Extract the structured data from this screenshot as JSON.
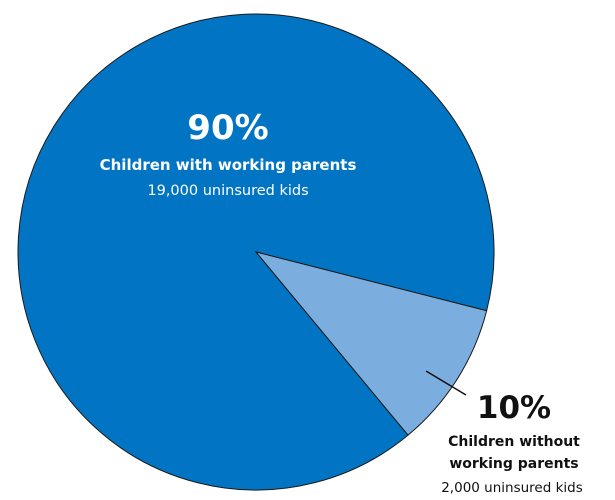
{
  "chart_data": {
    "type": "pie",
    "title": "",
    "slices": [
      {
        "label": "Children with working parents",
        "percent_label": "90%",
        "detail": "19,000 uninsured kids",
        "value": 90,
        "color": "#0175C4"
      },
      {
        "label": "Children without working parents",
        "label_lines": [
          "Children without",
          "working parents"
        ],
        "percent_label": "10%",
        "detail": "2,000 uninsured kids",
        "value": 10,
        "color": "#7BAEDF"
      }
    ],
    "edge_color": "#1a1a1a"
  }
}
